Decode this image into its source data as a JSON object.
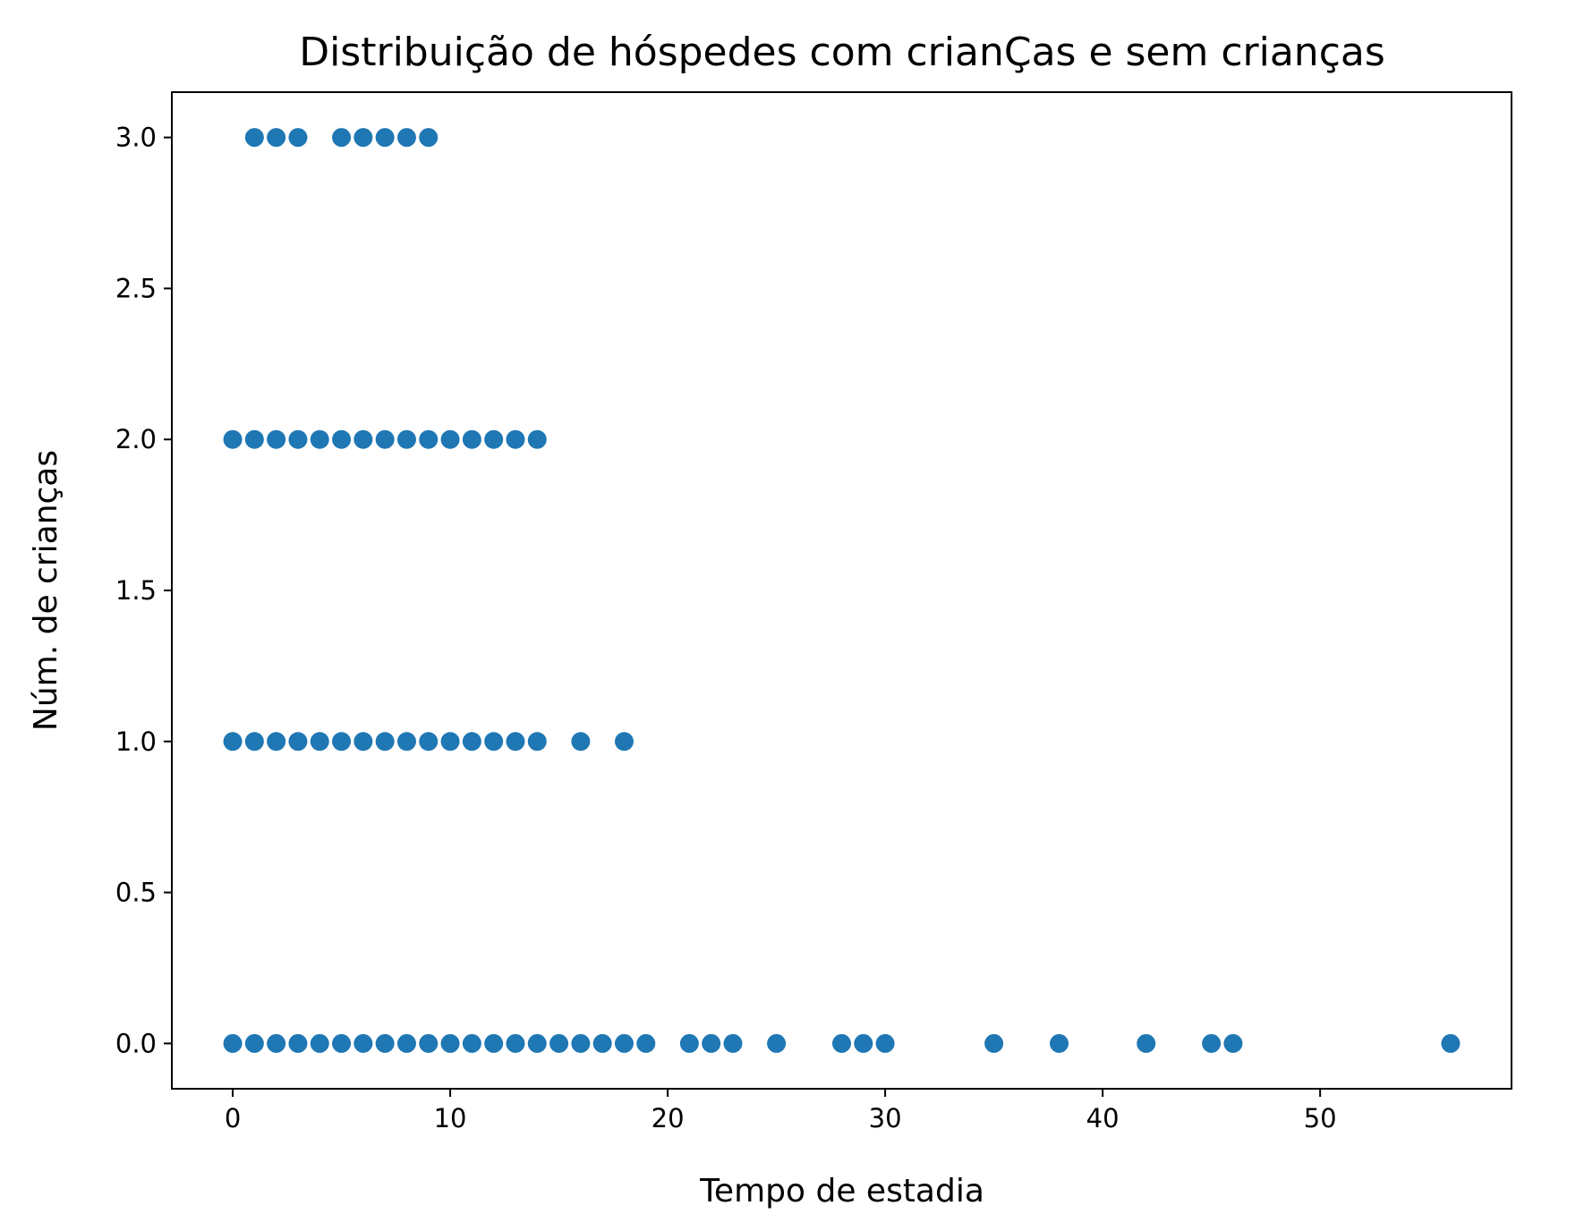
{
  "chart_data": {
    "type": "scatter",
    "title": "Distribuição de hóspedes com crianÇas e sem crianças",
    "xlabel": "Tempo de estadia",
    "ylabel": "Núm. de crianças",
    "xlim": [
      -2.8,
      58.8
    ],
    "ylim": [
      -0.15,
      3.15
    ],
    "xticks": [
      0,
      10,
      20,
      30,
      40,
      50
    ],
    "xtick_labels": [
      "0",
      "10",
      "20",
      "30",
      "40",
      "50"
    ],
    "yticks": [
      0.0,
      0.5,
      1.0,
      1.5,
      2.0,
      2.5,
      3.0
    ],
    "ytick_labels": [
      "0.0",
      "0.5",
      "1.0",
      "1.5",
      "2.0",
      "2.5",
      "3.0"
    ],
    "grid": false,
    "color": "#1f77b4",
    "points": [
      {
        "y": 3,
        "x": [
          1,
          2,
          3,
          5,
          6,
          7,
          8,
          9
        ]
      },
      {
        "y": 2,
        "x": [
          0,
          1,
          2,
          3,
          4,
          5,
          6,
          7,
          8,
          9,
          10,
          11,
          12,
          13,
          14
        ]
      },
      {
        "y": 1,
        "x": [
          0,
          1,
          2,
          3,
          4,
          5,
          6,
          7,
          8,
          9,
          10,
          11,
          12,
          13,
          14,
          16,
          18
        ]
      },
      {
        "y": 0,
        "x": [
          0,
          1,
          2,
          3,
          4,
          5,
          6,
          7,
          8,
          9,
          10,
          11,
          12,
          13,
          14,
          15,
          16,
          17,
          18,
          19,
          21,
          22,
          23,
          25,
          28,
          29,
          30,
          35,
          38,
          42,
          45,
          46,
          56
        ]
      }
    ]
  }
}
